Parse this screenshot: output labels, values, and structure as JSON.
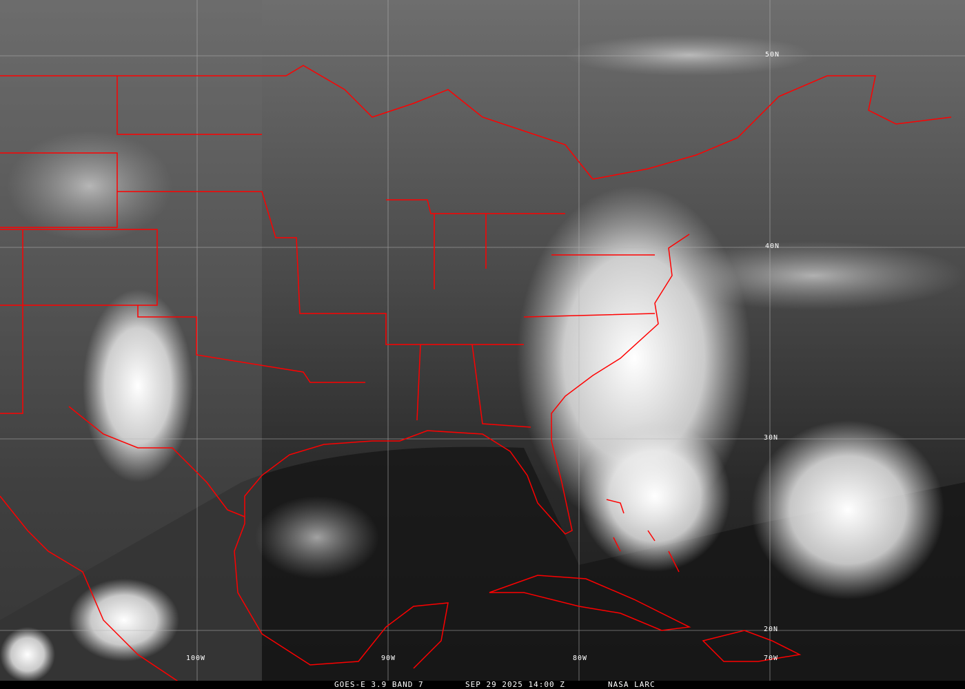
{
  "image": {
    "type": "satellite-imagery",
    "satellite": "GOES-E",
    "band_label": "GOES-E 3.9 BAND 7",
    "datetime": "SEP 29 2025 14:00 Z",
    "credit": "NASA LARC",
    "border_color": "#ff0000",
    "grid_color": "#b4b4b4"
  },
  "grid": {
    "latitudes": [
      "50N",
      "40N",
      "30N",
      "20N"
    ],
    "longitudes": [
      "100W",
      "90W",
      "80W",
      "70W"
    ]
  }
}
